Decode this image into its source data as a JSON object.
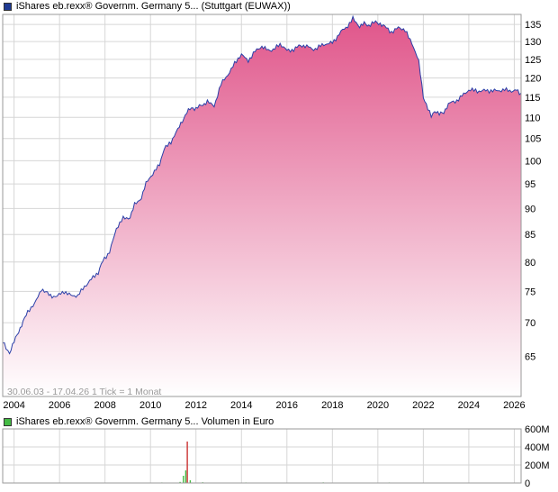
{
  "legend": {
    "main_label": "iShares eb.rexx® Governm. Germany 5... (Stuttgart (EUWAX))",
    "volume_label": "iShares eb.rexx® Governm. Germany 5... Volumen in Euro",
    "main_color": "#1f3a93",
    "volume_color": "#44bb44"
  },
  "note": "30.06.03 - 17.04.26   1 Tick = 1 Monat",
  "colors": {
    "line": "#2a3fa8",
    "area_top": "#e0558a",
    "area_bottom": "#ffffff",
    "grid": "#d6d6d6",
    "volume_bar": "#44bb44",
    "volume_spike": "#cc3333"
  },
  "chart_data": [
    {
      "type": "area",
      "xlim": [
        2003.5,
        2026.3
      ],
      "ylim": [
        59.5,
        138
      ],
      "y_scale": "log",
      "grid": true,
      "yticks": [
        65,
        70,
        75,
        80,
        85,
        90,
        95,
        100,
        105,
        110,
        115,
        120,
        125,
        130,
        135
      ],
      "ytick_labels": [
        "65",
        "70",
        "75",
        "80",
        "85",
        "90",
        "95",
        "100",
        "105",
        "110",
        "115",
        "120",
        "125",
        "130",
        "135"
      ],
      "xticks": [
        2004,
        2006,
        2008,
        2010,
        2012,
        2014,
        2016,
        2018,
        2020,
        2022,
        2024,
        2026
      ],
      "xtick_labels": [
        "2004",
        "2006",
        "2008",
        "2010",
        "2012",
        "2014",
        "2016",
        "2018",
        "2020",
        "2022",
        "2024",
        "2026"
      ],
      "series": [
        {
          "x": [
            2003.5,
            2003.65,
            2003.8,
            2004.0,
            2004.2,
            2004.4,
            2004.6,
            2004.9,
            2005.2,
            2005.6,
            2005.9,
            2006.2,
            2006.5,
            2006.8,
            2007.1,
            2007.4,
            2007.7,
            2007.9,
            2008.2,
            2008.5,
            2008.8,
            2009.1,
            2009.3,
            2009.6,
            2009.8,
            2010.1,
            2010.4,
            2010.6,
            2010.9,
            2011.2,
            2011.4,
            2011.6,
            2011.8,
            2012.0,
            2012.3,
            2012.5,
            2012.8,
            2013.1,
            2013.4,
            2013.7,
            2014.0,
            2014.3,
            2014.6,
            2014.9,
            2015.1,
            2015.4,
            2015.7,
            2016.0,
            2016.3,
            2016.6,
            2016.8,
            2017.1,
            2017.4,
            2017.7,
            2018.0,
            2018.3,
            2018.6,
            2018.9,
            2019.2,
            2019.4,
            2019.6,
            2019.9,
            2020.1,
            2020.3,
            2020.6,
            2020.9,
            2021.2,
            2021.5,
            2021.8,
            2022.0,
            2022.2,
            2022.35,
            2022.5,
            2022.7,
            2022.9,
            2023.1,
            2023.4,
            2023.7,
            2024.0,
            2024.3,
            2024.6,
            2024.9,
            2025.2,
            2025.5,
            2025.8,
            2026.1,
            2026.29
          ],
          "y": [
            67,
            66,
            65.5,
            67,
            68.5,
            70,
            71.5,
            73,
            75.5,
            74.5,
            74,
            75,
            74.5,
            74,
            76,
            77,
            78,
            80,
            82,
            86,
            88,
            88.5,
            91,
            92,
            95,
            97,
            99.5,
            103,
            104,
            107,
            109,
            111,
            112,
            112,
            113,
            114,
            113,
            118,
            121,
            124,
            126,
            125,
            127,
            128.5,
            127.5,
            128,
            129,
            127.5,
            128,
            128.5,
            128.5,
            128,
            128.5,
            129,
            130,
            132,
            134,
            137,
            134,
            135,
            134.5,
            135.5,
            135,
            134,
            133,
            134,
            133,
            130,
            124,
            115,
            112,
            110,
            111.5,
            110.5,
            111,
            113,
            114,
            115.5,
            116.5,
            117,
            116.5,
            116.5,
            117,
            116.5,
            116.8,
            116.9,
            116
          ]
        }
      ]
    },
    {
      "type": "bar",
      "xlim": [
        2003.5,
        2026.3
      ],
      "ylim": [
        0,
        600
      ],
      "grid": true,
      "yticks": [
        0,
        200,
        400,
        600
      ],
      "ytick_labels": [
        "0",
        "200M",
        "400M",
        "600M"
      ],
      "series": [
        {
          "name": "Volumen in Euro",
          "x": [
            2004.0,
            2005.5,
            2007.0,
            2008.5,
            2009.5,
            2010.5,
            2011.3,
            2011.45,
            2011.55,
            2011.62,
            2011.75,
            2012.3,
            2013.0,
            2014.2,
            2015.5,
            2016.8,
            2017.6,
            2018.5,
            2019.5,
            2020.5,
            2021.5,
            2022.5,
            2023.5,
            2024.5,
            2025.5
          ],
          "values": [
            3,
            2,
            4,
            3,
            5,
            6,
            12,
            80,
            140,
            460,
            30,
            8,
            4,
            6,
            5,
            4,
            7,
            5,
            3,
            6,
            4,
            3,
            5,
            4,
            3
          ]
        }
      ]
    }
  ]
}
